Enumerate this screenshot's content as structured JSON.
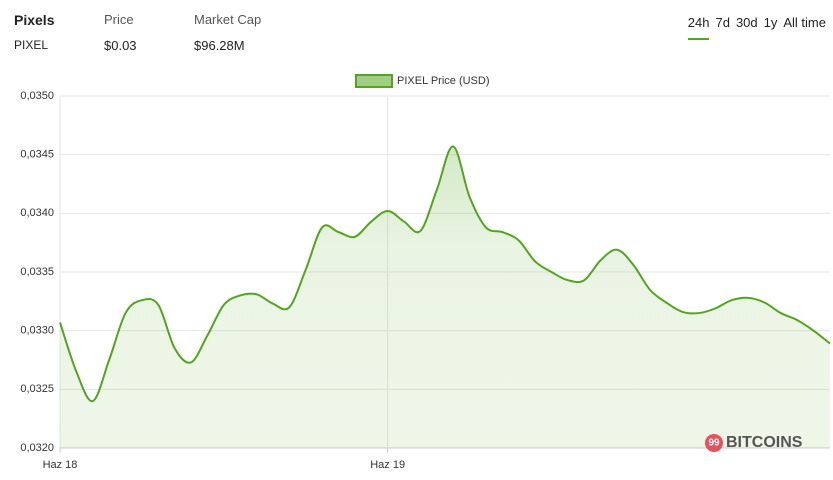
{
  "header": {
    "name": "Pixels",
    "symbol": "PIXEL",
    "stats": [
      {
        "label": "Price",
        "value": "$0.03"
      },
      {
        "label": "Market Cap",
        "value": "$96.28M"
      }
    ],
    "timeframes": [
      "24h",
      "7d",
      "30d",
      "1y",
      "All time"
    ],
    "active_timeframe": 0
  },
  "watermark": {
    "badge": "99",
    "text": "BITCOINS"
  },
  "chart_data": {
    "type": "line",
    "categories": [
      "Haz 18",
      null,
      null,
      null,
      null,
      null,
      null,
      null,
      null,
      null,
      null,
      null,
      null,
      null,
      null,
      null,
      null,
      null,
      null,
      null,
      "Haz 19",
      null,
      null,
      null,
      null,
      null,
      null,
      null,
      null,
      null,
      null,
      null,
      null,
      null,
      null,
      null,
      null,
      null,
      null,
      null,
      null,
      null,
      null,
      null,
      null,
      null,
      null,
      null
    ],
    "series": [
      {
        "name": "PIXEL Price (USD)",
        "color": "#52a51d",
        "values": [
          0.03307,
          0.03265,
          0.0324,
          0.03275,
          0.03315,
          0.03326,
          0.03322,
          0.03285,
          0.03273,
          0.03296,
          0.03322,
          0.0333,
          0.03331,
          0.03323,
          0.0332,
          0.03352,
          0.03388,
          0.03384,
          0.0338,
          0.03393,
          0.03402,
          0.03393,
          0.03385,
          0.0342,
          0.03457,
          0.03414,
          0.03388,
          0.03384,
          0.03377,
          0.03359,
          0.0335,
          0.03343,
          0.03343,
          0.0336,
          0.03369,
          0.03356,
          0.03335,
          0.03324,
          0.03316,
          0.03315,
          0.03319,
          0.03326,
          0.03328,
          0.03324,
          0.03315,
          0.03309,
          0.033,
          0.03289
        ]
      }
    ],
    "ylim": [
      0.032,
      0.035
    ],
    "yticks": [
      {
        "value": 0.032,
        "label": "0,0320"
      },
      {
        "value": 0.0325,
        "label": "0,0325"
      },
      {
        "value": 0.033,
        "label": "0,0330"
      },
      {
        "value": 0.0335,
        "label": "0,0335"
      },
      {
        "value": 0.034,
        "label": "0,0340"
      },
      {
        "value": 0.0345,
        "label": "0,0345"
      },
      {
        "value": 0.035,
        "label": "0,0350"
      }
    ],
    "grid": true,
    "legend": "top"
  }
}
